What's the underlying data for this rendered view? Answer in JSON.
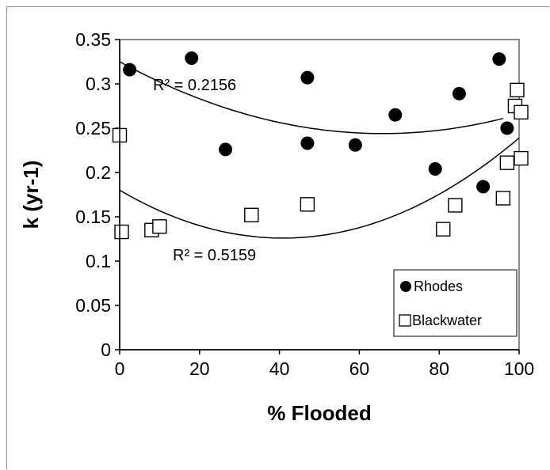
{
  "chart_data": {
    "type": "scatter",
    "xlabel": "% Flooded",
    "ylabel": "k (yr-1)",
    "xlim": [
      0,
      100
    ],
    "ylim": [
      0,
      0.35
    ],
    "xticks": [
      "0",
      "20",
      "40",
      "60",
      "80",
      "100"
    ],
    "yticks": [
      "0",
      "0.05",
      "0.1",
      "0.15",
      "0.2",
      "0.25",
      "0.3",
      "0.35"
    ],
    "grid": false,
    "legend_position": "bottom-right",
    "series": [
      {
        "name": "Rhodes",
        "marker": "filled-circle",
        "color": "#000000",
        "points": [
          {
            "x": 2.5,
            "y": 0.316
          },
          {
            "x": 18,
            "y": 0.329
          },
          {
            "x": 26.5,
            "y": 0.226
          },
          {
            "x": 47,
            "y": 0.307
          },
          {
            "x": 47,
            "y": 0.233
          },
          {
            "x": 59,
            "y": 0.231
          },
          {
            "x": 69,
            "y": 0.265
          },
          {
            "x": 79,
            "y": 0.204
          },
          {
            "x": 85,
            "y": 0.289
          },
          {
            "x": 91,
            "y": 0.184
          },
          {
            "x": 95,
            "y": 0.328
          },
          {
            "x": 97,
            "y": 0.25
          }
        ],
        "trend": {
          "kind": "quadratic",
          "x_start": 0,
          "x_end": 96,
          "y_start": 0.325,
          "y_min_x": 68,
          "y_min": 0.244,
          "y_end": 0.261,
          "r2_label": "R² = 0.2156"
        }
      },
      {
        "name": "Blackwater",
        "marker": "open-square",
        "color": "#000000",
        "points": [
          {
            "x": 0,
            "y": 0.242
          },
          {
            "x": 0.5,
            "y": 0.133
          },
          {
            "x": 8,
            "y": 0.135
          },
          {
            "x": 10,
            "y": 0.139
          },
          {
            "x": 33,
            "y": 0.152
          },
          {
            "x": 47,
            "y": 0.164
          },
          {
            "x": 81,
            "y": 0.136
          },
          {
            "x": 84,
            "y": 0.163
          },
          {
            "x": 96,
            "y": 0.171
          },
          {
            "x": 97,
            "y": 0.211
          },
          {
            "x": 99,
            "y": 0.275
          },
          {
            "x": 99.5,
            "y": 0.293
          },
          {
            "x": 100.5,
            "y": 0.268
          },
          {
            "x": 100.5,
            "y": 0.216
          }
        ],
        "trend": {
          "kind": "quadratic",
          "x_start": 0,
          "x_end": 100,
          "y_start": 0.18,
          "y_min_x": 40,
          "y_min": 0.126,
          "y_end": 0.239,
          "r2_label": "R² = 0.5159"
        }
      }
    ]
  }
}
